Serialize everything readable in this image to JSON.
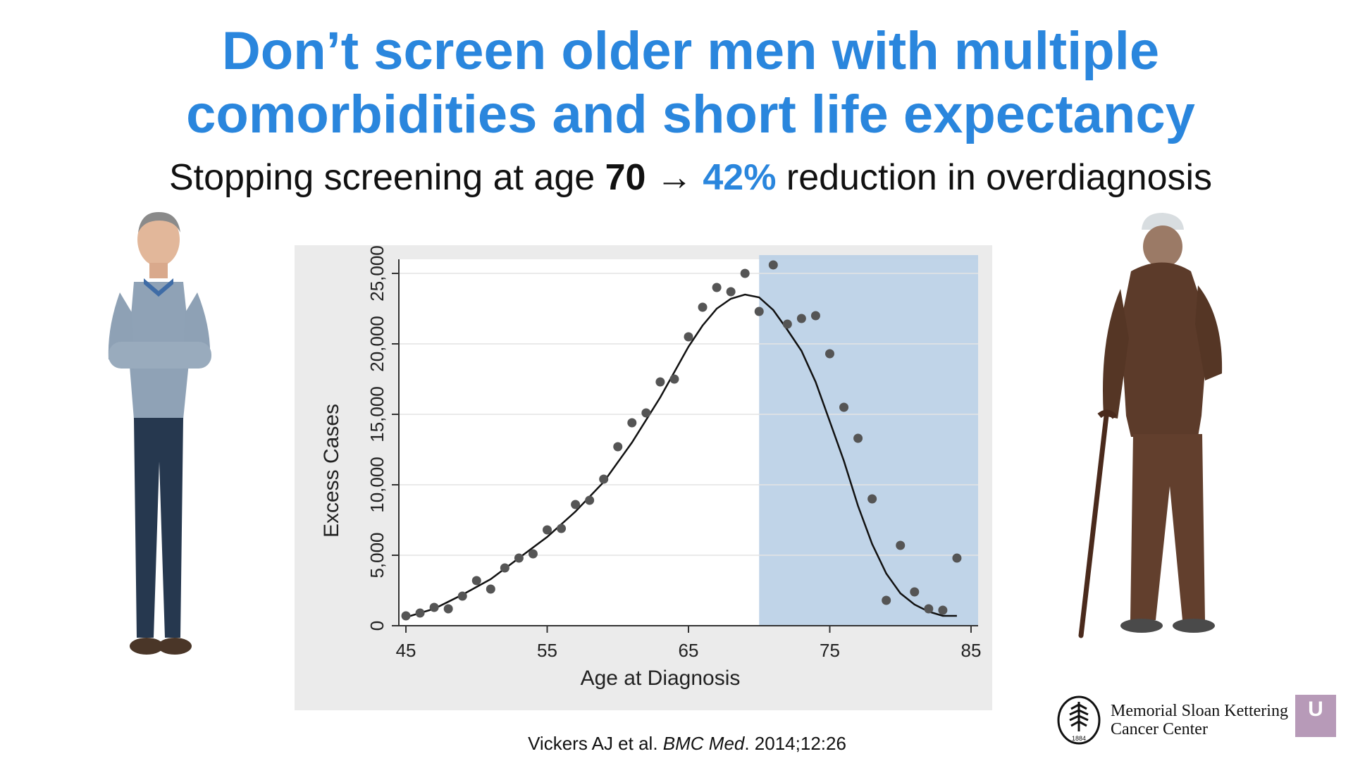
{
  "slide": {
    "title_line1": "Don’t screen older men with multiple",
    "title_line2": "comorbidities and short life expectancy",
    "subtitle": {
      "pre": "Stopping screening at age ",
      "age": "70",
      "arrow": "→",
      "pct": "42%",
      "post": " reduction in overdiagnosis"
    },
    "citation": {
      "pre": "Vickers AJ et al. ",
      "journal": "BMC Med",
      "post": ". 2014;12:26"
    },
    "logo": {
      "line1": "Memorial Sloan Kettering",
      "line2": "Cancer Center",
      "year": "1884"
    },
    "badge_letter": "U"
  },
  "colors": {
    "accent": "#2a86dd",
    "shade": "#b9cfe6",
    "points": "#555555",
    "curve": "#111111"
  },
  "chart_data": {
    "type": "scatter",
    "xlabel": "Age at Diagnosis",
    "ylabel": "Excess Cases",
    "xlim": [
      44.5,
      85.5
    ],
    "ylim": [
      0,
      26000
    ],
    "xticks": [
      45,
      55,
      65,
      75,
      85
    ],
    "yticks": [
      0,
      5000,
      10000,
      15000,
      20000,
      25000
    ],
    "ytick_labels": [
      "0",
      "5,000",
      "10,000",
      "15,000",
      "20,000",
      "25,000"
    ],
    "grid": true,
    "shaded_region": {
      "from": 70,
      "to": 85.5
    },
    "points": {
      "x": [
        45,
        46,
        47,
        48,
        49,
        50,
        51,
        52,
        53,
        54,
        55,
        56,
        57,
        58,
        59,
        60,
        61,
        62,
        63,
        64,
        65,
        66,
        67,
        68,
        69,
        70,
        71,
        72,
        73,
        74,
        75,
        76,
        77,
        78,
        79,
        80,
        81,
        82,
        83,
        84
      ],
      "y": [
        700,
        900,
        1300,
        1200,
        2100,
        3200,
        2600,
        4100,
        4800,
        5100,
        6800,
        6900,
        8600,
        8900,
        10400,
        12700,
        14400,
        15100,
        17300,
        17500,
        20500,
        22600,
        24000,
        23700,
        25000,
        22300,
        25600,
        21400,
        21800,
        22000,
        19300,
        15500,
        13300,
        9000,
        1800,
        5700,
        2400,
        1200,
        1100,
        4800
      ]
    },
    "fit": {
      "x": [
        45,
        47,
        49,
        51,
        53,
        55,
        57,
        59,
        61,
        63,
        65,
        66,
        67,
        68,
        69,
        70,
        71,
        72,
        73,
        74,
        75,
        76,
        77,
        78,
        79,
        80,
        81,
        82,
        83,
        84
      ],
      "y": [
        600,
        1200,
        2200,
        3300,
        4800,
        6300,
        8100,
        10200,
        13000,
        16200,
        19800,
        21300,
        22500,
        23200,
        23500,
        23300,
        22400,
        21000,
        19500,
        17300,
        14500,
        11700,
        8500,
        5800,
        3700,
        2300,
        1500,
        1000,
        700,
        700
      ]
    }
  }
}
